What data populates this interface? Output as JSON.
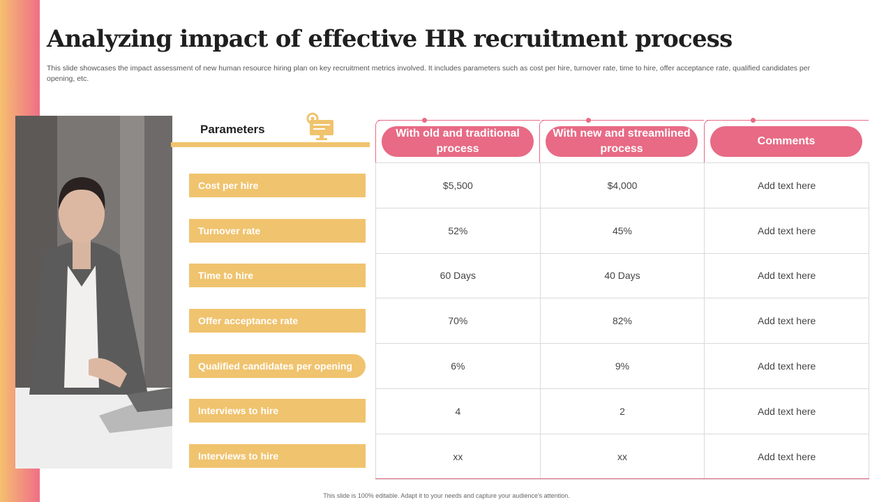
{
  "title": "Analyzing impact of effective HR recruitment process",
  "subtitle": "This slide showcases the impact assessment of new human resource hiring plan on key recruitment metrics involved. It includes parameters such as cost per hire, turnover rate, time to hire, offer acceptance rate, qualified candidates per opening, etc.",
  "parameters_header": "Parameters",
  "columns": {
    "old": "With old and traditional process",
    "new": "With new and streamlined process",
    "comments": "Comments"
  },
  "rows": [
    {
      "param": "Cost per hire",
      "old": "$5,500",
      "new": "$4,000",
      "comment": "Add text here"
    },
    {
      "param": "Turnover rate",
      "old": "52%",
      "new": "45%",
      "comment": "Add text here"
    },
    {
      "param": "Time to hire",
      "old": "60 Days",
      "new": "40 Days",
      "comment": "Add text here"
    },
    {
      "param": "Offer acceptance rate",
      "old": "70%",
      "new": "82%",
      "comment": "Add text here"
    },
    {
      "param": "Qualified candidates per opening",
      "old": "6%",
      "new": "9%",
      "comment": "Add text here"
    },
    {
      "param": "Interviews to hire",
      "old": "4",
      "new": "2",
      "comment": "Add text here"
    },
    {
      "param": "Interviews to hire",
      "old": "xx",
      "new": "xx",
      "comment": "Add text here"
    }
  ],
  "footer": "This slide is 100% editable. Adapt it to your needs and capture your audience's attention.",
  "colors": {
    "accent_pink": "#e86a85",
    "accent_yellow": "#f0c36e"
  }
}
